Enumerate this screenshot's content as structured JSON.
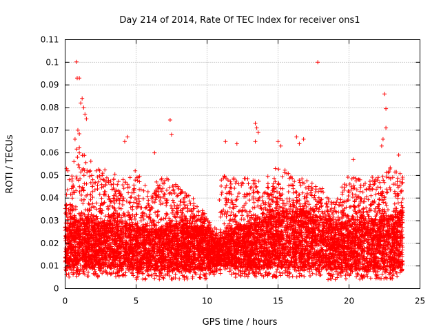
{
  "chart_data": {
    "type": "scatter",
    "title": "Day 214 of 2014, Rate Of TEC Index for receiver ons1",
    "xlabel": "GPS time / hours",
    "ylabel": "ROTI / TECUs",
    "xlim": [
      0,
      25
    ],
    "ylim": [
      0,
      0.11
    ],
    "x_ticks": [
      0,
      5,
      10,
      15,
      20,
      25
    ],
    "x_tick_labels": [
      "0",
      "5",
      "10",
      "15",
      "20",
      "25"
    ],
    "y_ticks": [
      0,
      0.01,
      0.02,
      0.03,
      0.04,
      0.05,
      0.06,
      0.07,
      0.08,
      0.09,
      0.1,
      0.11
    ],
    "y_tick_labels": [
      "0",
      "0.01",
      "0.02",
      "0.03",
      "0.04",
      "0.05",
      "0.06",
      "0.07",
      "0.08",
      "0.09",
      "0.1",
      "0.11"
    ],
    "grid": true,
    "marker": "+",
    "color": "#ff0000",
    "data_x_range": [
      0,
      23.8
    ],
    "envelope": {
      "hours": [
        0,
        1,
        2,
        3,
        4,
        5,
        6,
        7,
        8,
        9,
        10,
        10.5,
        11,
        12,
        13,
        14,
        15,
        16,
        17,
        18,
        19,
        20,
        21,
        22,
        23,
        23.8
      ],
      "base_low": [
        0.009,
        0.009,
        0.009,
        0.009,
        0.009,
        0.008,
        0.008,
        0.008,
        0.008,
        0.008,
        0.008,
        0.01,
        0.01,
        0.009,
        0.009,
        0.009,
        0.009,
        0.009,
        0.009,
        0.008,
        0.008,
        0.008,
        0.008,
        0.008,
        0.008,
        0.008
      ],
      "dense_top": [
        0.028,
        0.032,
        0.03,
        0.03,
        0.03,
        0.027,
        0.026,
        0.027,
        0.029,
        0.028,
        0.026,
        0.021,
        0.022,
        0.028,
        0.028,
        0.03,
        0.034,
        0.034,
        0.034,
        0.032,
        0.028,
        0.03,
        0.032,
        0.03,
        0.032,
        0.034
      ],
      "spike_top": [
        0.04,
        0.07,
        0.055,
        0.052,
        0.05,
        0.055,
        0.045,
        0.05,
        0.045,
        0.04,
        0.032,
        0.025,
        0.05,
        0.05,
        0.05,
        0.048,
        0.055,
        0.05,
        0.048,
        0.045,
        0.04,
        0.05,
        0.048,
        0.05,
        0.055,
        0.05
      ]
    },
    "peaks": [
      {
        "x": 0.8,
        "y": 0.1002
      },
      {
        "x": 0.85,
        "y": 0.093
      },
      {
        "x": 1.0,
        "y": 0.093
      },
      {
        "x": 1.1,
        "y": 0.082
      },
      {
        "x": 1.2,
        "y": 0.084
      },
      {
        "x": 1.3,
        "y": 0.08
      },
      {
        "x": 0.9,
        "y": 0.07
      },
      {
        "x": 1.4,
        "y": 0.077
      },
      {
        "x": 1.5,
        "y": 0.075
      },
      {
        "x": 0.7,
        "y": 0.066
      },
      {
        "x": 1.0,
        "y": 0.06
      },
      {
        "x": 4.2,
        "y": 0.065
      },
      {
        "x": 4.4,
        "y": 0.067
      },
      {
        "x": 6.3,
        "y": 0.06
      },
      {
        "x": 7.4,
        "y": 0.0745
      },
      {
        "x": 7.5,
        "y": 0.068
      },
      {
        "x": 11.3,
        "y": 0.065
      },
      {
        "x": 12.1,
        "y": 0.064
      },
      {
        "x": 13.4,
        "y": 0.073
      },
      {
        "x": 13.5,
        "y": 0.071
      },
      {
        "x": 13.6,
        "y": 0.069
      },
      {
        "x": 13.4,
        "y": 0.065
      },
      {
        "x": 15.0,
        "y": 0.065
      },
      {
        "x": 15.2,
        "y": 0.063
      },
      {
        "x": 16.3,
        "y": 0.067
      },
      {
        "x": 16.5,
        "y": 0.064
      },
      {
        "x": 16.8,
        "y": 0.066
      },
      {
        "x": 17.8,
        "y": 0.1
      },
      {
        "x": 22.5,
        "y": 0.086
      },
      {
        "x": 22.6,
        "y": 0.0795
      },
      {
        "x": 22.6,
        "y": 0.071
      },
      {
        "x": 22.4,
        "y": 0.066
      },
      {
        "x": 22.3,
        "y": 0.063
      },
      {
        "x": 23.5,
        "y": 0.059
      },
      {
        "x": 20.3,
        "y": 0.057
      },
      {
        "x": 0.1,
        "y": 0.053
      },
      {
        "x": 0.2,
        "y": 0.052
      }
    ]
  }
}
